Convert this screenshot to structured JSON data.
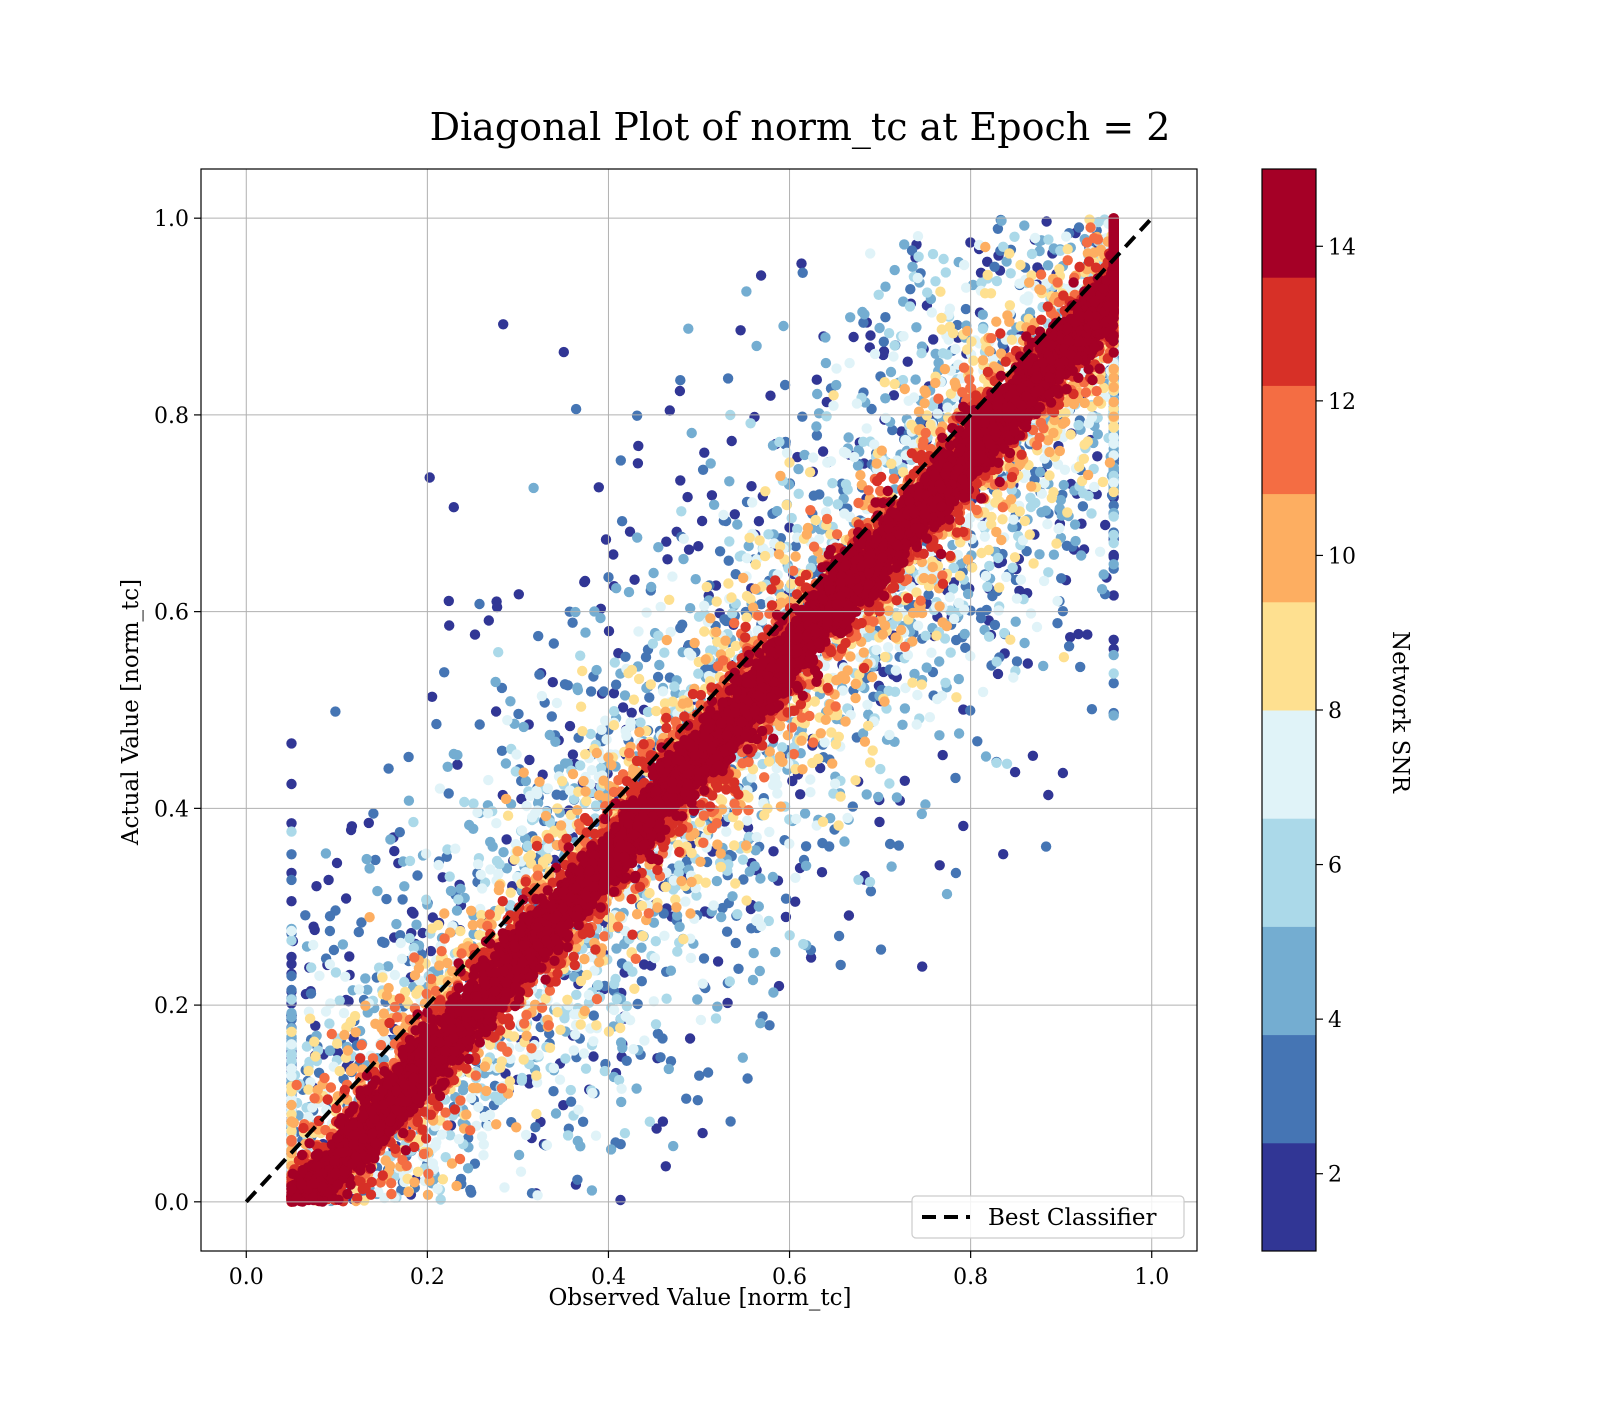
{
  "chart_data": {
    "type": "scatter",
    "title": "Diagonal Plot of norm_tc at Epoch = 2",
    "xlabel": "Observed Value [norm_tc]",
    "ylabel": "Actual Value [norm_tc]",
    "xlim": [
      -0.05,
      1.05
    ],
    "ylim": [
      -0.05,
      1.05
    ],
    "x_ticks": [
      "0.0",
      "0.2",
      "0.4",
      "0.6",
      "0.8",
      "1.0"
    ],
    "y_ticks": [
      "0.0",
      "0.2",
      "0.4",
      "0.6",
      "0.8",
      "1.0"
    ],
    "grid": true,
    "legend": {
      "position": "lower-right",
      "entries": [
        {
          "label": "Best Classifier",
          "style": "dashed",
          "color": "#000000"
        }
      ]
    },
    "reference_line": {
      "label": "Best Classifier",
      "from": [
        0.0,
        0.0
      ],
      "to": [
        1.0,
        1.0
      ]
    },
    "colorbar": {
      "label": "Network SNR",
      "range": [
        1,
        15
      ],
      "ticks": [
        "2",
        "4",
        "6",
        "8",
        "10",
        "12",
        "14"
      ],
      "bins": 10,
      "colors": [
        "#313695",
        "#4575b4",
        "#74add1",
        "#abd9e9",
        "#e0f3f8",
        "#fee090",
        "#fdae61",
        "#f46d43",
        "#d73027",
        "#a50026"
      ]
    },
    "scatter_summary": {
      "point_count_approx": 100000,
      "x_range": [
        0.05,
        0.96
      ],
      "y_range": [
        0.0,
        1.0
      ],
      "pattern": "high-SNR points (red) lie close to the diagonal y = x; low-SNR points (blue) spread far from it, toward the upper-left and lower-right"
    }
  }
}
